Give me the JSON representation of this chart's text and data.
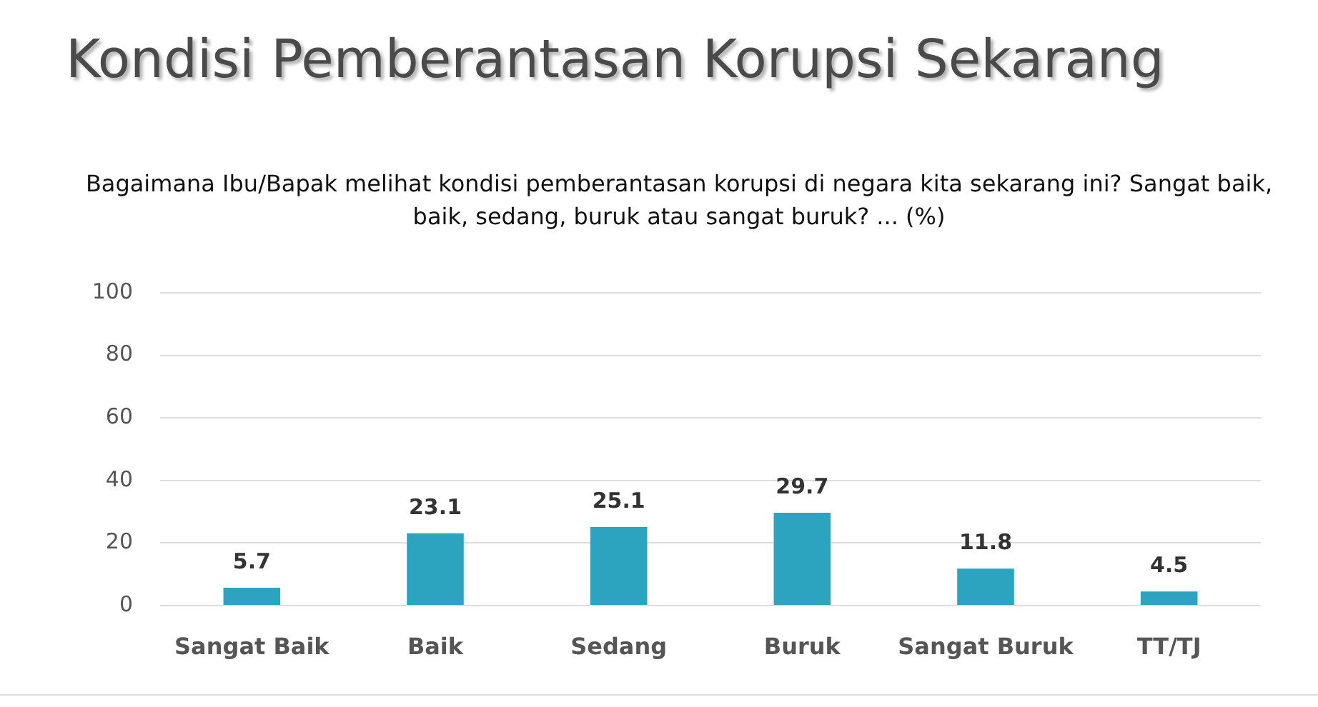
{
  "chart_data": {
    "type": "bar",
    "title": "Kondisi Pemberantasan Korupsi Sekarang",
    "subtitle": "Bagaimana Ibu/Bapak melihat kondisi pemberantasan korupsi di negara kita sekarang ini? Sangat baik, baik, sedang, buruk atau sangat buruk? ... (%)",
    "categories": [
      "Sangat Baik",
      "Baik",
      "Sedang",
      "Buruk",
      "Sangat Buruk",
      "TT/TJ"
    ],
    "values": [
      5.7,
      23.1,
      25.1,
      29.7,
      11.8,
      4.5
    ],
    "color": "#2ca3bf",
    "ylim": [
      0,
      100
    ],
    "yticks": [
      0,
      20,
      40,
      60,
      80,
      100
    ],
    "grid": "y",
    "data_labels": true
  }
}
